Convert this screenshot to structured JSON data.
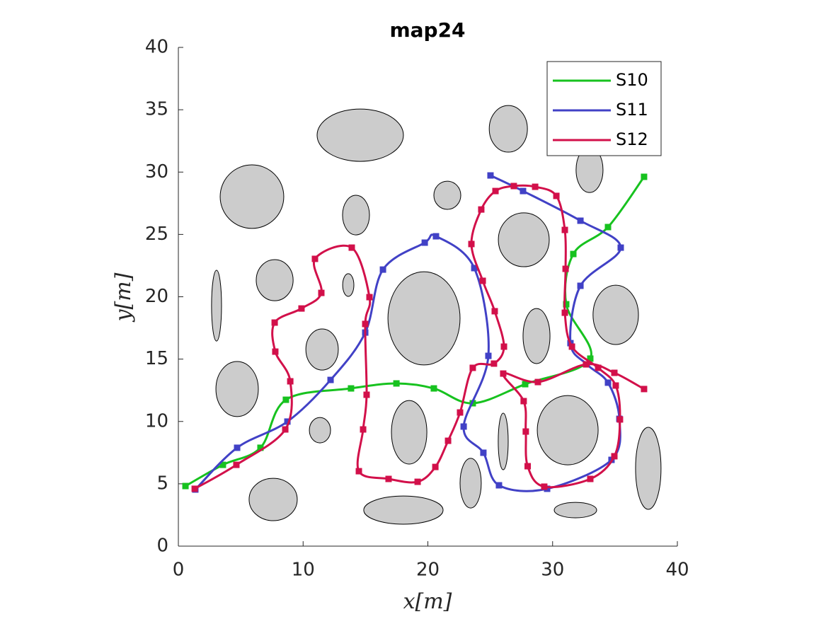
{
  "chart_data": {
    "type": "line",
    "title": "map24",
    "x_label": "x[m]",
    "y_label": "y[m]",
    "xlim": [
      0,
      40
    ],
    "ylim": [
      0,
      40
    ],
    "xticks": [
      0,
      10,
      20,
      30,
      40
    ],
    "yticks": [
      0,
      5,
      10,
      15,
      20,
      25,
      30,
      35,
      40
    ],
    "legend": "upper right",
    "obstacle_color": "#cccccc",
    "obstacles": [
      {
        "cx": 14.58,
        "cy": 32.96,
        "rx": 3.46,
        "ry": 2.1
      },
      {
        "cx": 26.45,
        "cy": 33.47,
        "rx": 1.53,
        "ry": 1.87
      },
      {
        "cx": 5.9,
        "cy": 28.03,
        "rx": 2.55,
        "ry": 2.55
      },
      {
        "cx": 21.56,
        "cy": 28.14,
        "rx": 1.08,
        "ry": 1.13
      },
      {
        "cx": 32.96,
        "cy": 30.18,
        "rx": 1.08,
        "ry": 1.82
      },
      {
        "cx": 14.24,
        "cy": 26.55,
        "rx": 1.08,
        "ry": 1.59
      },
      {
        "cx": 27.69,
        "cy": 24.57,
        "rx": 2.04,
        "ry": 2.16
      },
      {
        "cx": 7.72,
        "cy": 21.33,
        "rx": 1.48,
        "ry": 1.65
      },
      {
        "cx": 13.62,
        "cy": 20.94,
        "rx": 0.45,
        "ry": 0.91
      },
      {
        "cx": 3.06,
        "cy": 19.29,
        "rx": 0.4,
        "ry": 2.84
      },
      {
        "cx": 19.69,
        "cy": 18.27,
        "rx": 2.89,
        "ry": 3.74
      },
      {
        "cx": 35.06,
        "cy": 18.55,
        "rx": 1.82,
        "ry": 2.38
      },
      {
        "cx": 11.52,
        "cy": 15.77,
        "rx": 1.3,
        "ry": 1.65
      },
      {
        "cx": 28.71,
        "cy": 16.85,
        "rx": 1.08,
        "ry": 2.21
      },
      {
        "cx": 4.71,
        "cy": 12.6,
        "rx": 1.7,
        "ry": 2.21
      },
      {
        "cx": 11.35,
        "cy": 9.3,
        "rx": 0.85,
        "ry": 1.02
      },
      {
        "cx": 18.5,
        "cy": 9.13,
        "rx": 1.42,
        "ry": 2.55
      },
      {
        "cx": 26.04,
        "cy": 8.4,
        "rx": 0.4,
        "ry": 2.27
      },
      {
        "cx": 31.21,
        "cy": 9.3,
        "rx": 2.44,
        "ry": 2.78
      },
      {
        "cx": 37.67,
        "cy": 6.24,
        "rx": 1.02,
        "ry": 3.29
      },
      {
        "cx": 23.43,
        "cy": 5.05,
        "rx": 0.85,
        "ry": 1.99
      },
      {
        "cx": 7.6,
        "cy": 3.74,
        "rx": 1.93,
        "ry": 1.7
      },
      {
        "cx": 18.04,
        "cy": 2.89,
        "rx": 3.18,
        "ry": 1.13
      },
      {
        "cx": 31.83,
        "cy": 2.89,
        "rx": 1.7,
        "ry": 0.62
      }
    ],
    "series": [
      {
        "name": "S10",
        "color": "#17c21f",
        "x": [
          0.57,
          3.57,
          6.58,
          8.62,
          13.84,
          17.48,
          20.48,
          23.6,
          27.8,
          33.02,
          31.09,
          31.66,
          34.44,
          37.33
        ],
        "y": [
          4.82,
          6.52,
          7.89,
          11.74,
          12.65,
          13.05,
          12.65,
          11.46,
          12.99,
          15.04,
          19.4,
          23.43,
          25.59,
          29.62
        ]
      },
      {
        "name": "S11",
        "color": "#4141c6",
        "x": [
          1.36,
          4.71,
          8.74,
          12.2,
          14.98,
          16.4,
          19.75,
          20.65,
          23.72,
          24.85,
          22.87,
          24.45,
          25.7,
          29.56,
          34.72,
          35.35,
          34.44,
          32.74,
          31.43,
          32.23,
          35.46,
          32.23,
          27.63,
          25.02
        ],
        "y": [
          4.54,
          7.89,
          9.99,
          13.33,
          17.13,
          22.18,
          24.34,
          24.85,
          22.3,
          15.26,
          9.59,
          7.49,
          4.88,
          4.6,
          6.92,
          10.21,
          13.11,
          14.58,
          16.28,
          20.88,
          23.94,
          26.1,
          28.48,
          29.73
        ]
      },
      {
        "name": "S12",
        "color": "#d2104a",
        "x": [
          1.31,
          4.65,
          8.57,
          8.97,
          7.77,
          7.72,
          9.87,
          11.46,
          10.95,
          13.9,
          15.32,
          14.98,
          15.09,
          14.81,
          14.47,
          16.85,
          19.18,
          20.6,
          21.62,
          22.58,
          23.6,
          25.3,
          26.1,
          25.36,
          24.4,
          23.49,
          24.28,
          25.42,
          26.89,
          28.6,
          30.3,
          30.98,
          31.04,
          30.98,
          31.55,
          33.65,
          35.06,
          35.4,
          34.95,
          33.02,
          29.33,
          28.0,
          27.85,
          27.68,
          26.04,
          28.82,
          32.68,
          34.95,
          37.33
        ],
        "y": [
          4.6,
          6.52,
          9.36,
          13.22,
          15.6,
          17.93,
          19.06,
          20.31,
          23.04,
          23.94,
          19.97,
          17.82,
          12.14,
          9.36,
          6.01,
          5.39,
          5.16,
          6.35,
          8.45,
          10.72,
          14.3,
          14.64,
          16.0,
          18.84,
          21.28,
          24.23,
          27.0,
          28.48,
          28.88,
          28.82,
          28.09,
          25.36,
          22.24,
          18.72,
          16.0,
          14.3,
          12.88,
          10.16,
          7.21,
          5.39,
          4.77,
          6.41,
          9.19,
          11.63,
          13.84,
          13.16,
          14.58,
          13.9,
          12.6
        ]
      }
    ]
  }
}
